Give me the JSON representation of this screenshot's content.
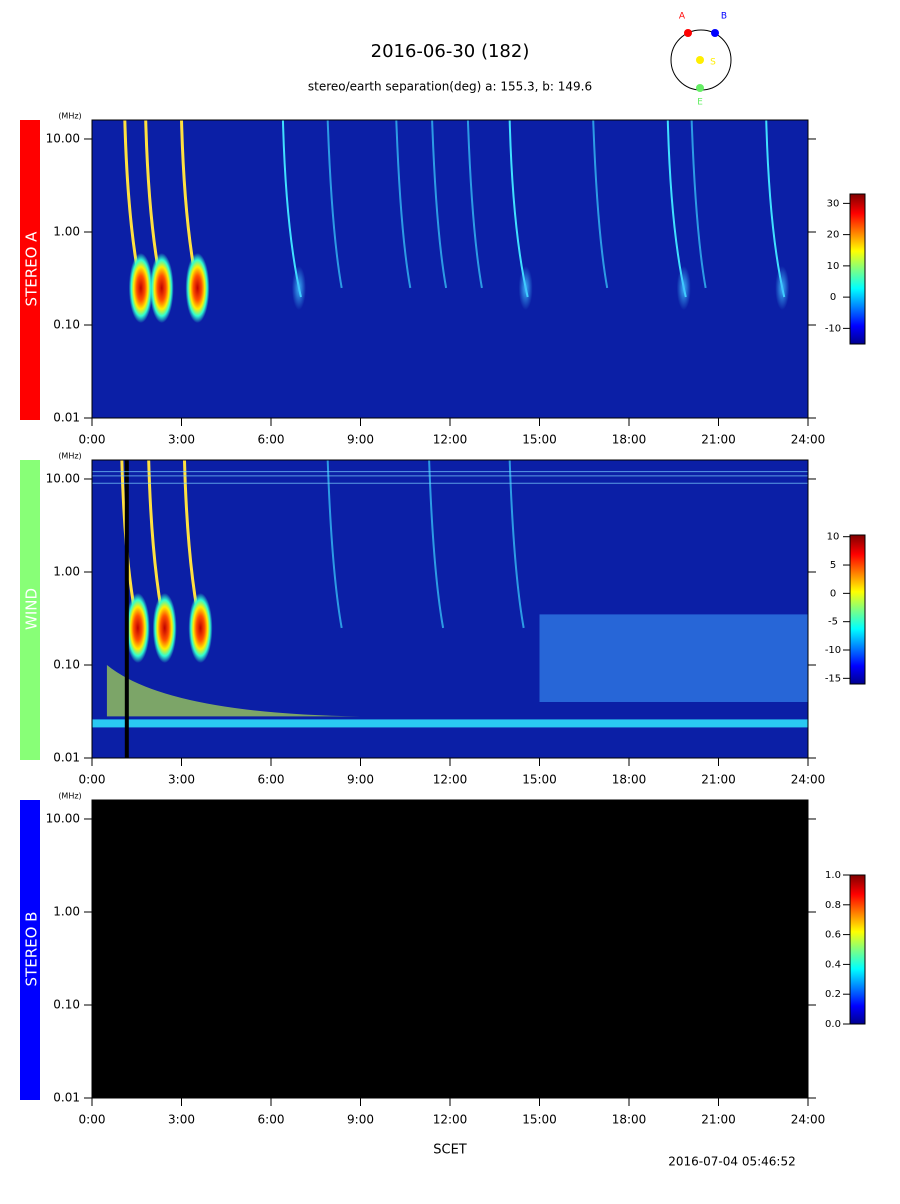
{
  "title": "2016-06-30 (182)",
  "subtitle": "stereo/earth separation(deg) a: 155.3, b: 149.6",
  "orbit": {
    "labels": [
      "A",
      "B",
      "S",
      "E"
    ],
    "colors": [
      "#ff0000",
      "#0000ff",
      "#ffee00",
      "#66ee66"
    ]
  },
  "x_label": "SCET",
  "timestamp": "2016-07-04 05:46:52",
  "chart_data": [
    {
      "type": "spectrogram",
      "panel_label": "STEREO A",
      "panel_color": "#ff0000",
      "background": "#0b1fa6",
      "y_unit": "(MHz)",
      "log_y": true,
      "ylim": [
        0.01,
        16
      ],
      "yticks": [
        {
          "value": 10,
          "label": "10.00"
        },
        {
          "value": 1,
          "label": "1.00"
        },
        {
          "value": 0.1,
          "label": "0.10"
        },
        {
          "value": 0.01,
          "label": "0.01"
        }
      ],
      "xlim": [
        0,
        24
      ],
      "xticks": [
        {
          "value": 0,
          "label": "0:00"
        },
        {
          "value": 3,
          "label": "3:00"
        },
        {
          "value": 6,
          "label": "6:00"
        },
        {
          "value": 9,
          "label": "9:00"
        },
        {
          "value": 12,
          "label": "12:00"
        },
        {
          "value": 15,
          "label": "15:00"
        },
        {
          "value": 18,
          "label": "18:00"
        },
        {
          "value": 21,
          "label": "21:00"
        },
        {
          "value": 24,
          "label": "24:00"
        }
      ],
      "colorbar": {
        "lim": [
          -15,
          33
        ],
        "ticks": [
          -10,
          0,
          10,
          20,
          30
        ]
      }
    },
    {
      "type": "spectrogram",
      "panel_label": "WIND",
      "panel_color": "#88ff77",
      "background": "#0b1fa6",
      "y_unit": "(MHz)",
      "log_y": true,
      "ylim": [
        0.01,
        16
      ],
      "yticks": [
        {
          "value": 10,
          "label": "10.00"
        },
        {
          "value": 1,
          "label": "1.00"
        },
        {
          "value": 0.1,
          "label": "0.10"
        },
        {
          "value": 0.01,
          "label": "0.01"
        }
      ],
      "xlim": [
        0,
        24
      ],
      "xticks": [
        {
          "value": 0,
          "label": "0:00"
        },
        {
          "value": 3,
          "label": "3:00"
        },
        {
          "value": 6,
          "label": "6:00"
        },
        {
          "value": 9,
          "label": "9:00"
        },
        {
          "value": 12,
          "label": "12:00"
        },
        {
          "value": 15,
          "label": "15:00"
        },
        {
          "value": 18,
          "label": "18:00"
        },
        {
          "value": 21,
          "label": "21:00"
        },
        {
          "value": 24,
          "label": "24:00"
        }
      ],
      "colorbar": {
        "lim": [
          -16,
          10.3
        ],
        "ticks": [
          10,
          5,
          0,
          -5,
          -10,
          -15
        ]
      }
    },
    {
      "type": "spectrogram",
      "panel_label": "STEREO B",
      "panel_color": "#0000ff",
      "background": "#000000",
      "y_unit": "(MHz)",
      "log_y": true,
      "ylim": [
        0.01,
        16
      ],
      "yticks": [
        {
          "value": 10,
          "label": "10.00"
        },
        {
          "value": 1,
          "label": "1.00"
        },
        {
          "value": 0.1,
          "label": "0.10"
        },
        {
          "value": 0.01,
          "label": "0.01"
        }
      ],
      "xlim": [
        0,
        24
      ],
      "xticks": [
        {
          "value": 0,
          "label": "0:00"
        },
        {
          "value": 3,
          "label": "3:00"
        },
        {
          "value": 6,
          "label": "6:00"
        },
        {
          "value": 9,
          "label": "9:00"
        },
        {
          "value": 12,
          "label": "12:00"
        },
        {
          "value": 15,
          "label": "15:00"
        },
        {
          "value": 18,
          "label": "18:00"
        },
        {
          "value": 21,
          "label": "21:00"
        },
        {
          "value": 24,
          "label": "24:00"
        }
      ],
      "colorbar": {
        "lim": [
          0,
          1
        ],
        "ticks": [
          {
            "value": 1,
            "label": "1.0"
          },
          {
            "value": 0.8,
            "label": "0.8"
          },
          {
            "value": 0.6,
            "label": "0.6"
          },
          {
            "value": 0.4,
            "label": "0.4"
          },
          {
            "value": 0.2,
            "label": "0.2"
          },
          {
            "value": 0,
            "label": "0.0"
          }
        ]
      }
    }
  ]
}
